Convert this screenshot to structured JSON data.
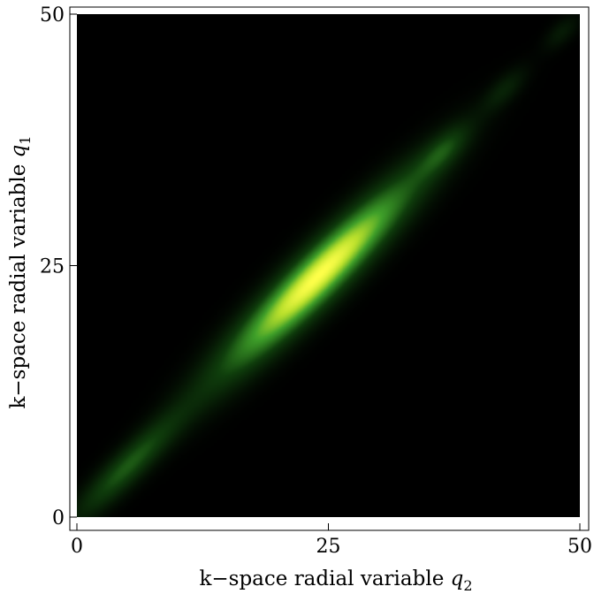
{
  "chart_data": {
    "type": "heatmap",
    "title": "",
    "xlabel": {
      "text": "k−space radial variable ",
      "symbol": "q",
      "subscript": "2"
    },
    "ylabel": {
      "text": "k−space radial variable ",
      "symbol": "q",
      "subscript": "1"
    },
    "xlim": [
      0,
      50
    ],
    "ylim": [
      0,
      50
    ],
    "xticks": [
      0,
      25,
      50
    ],
    "yticks": [
      0,
      25,
      50
    ],
    "xtick_labels": [
      "0",
      "25",
      "50"
    ],
    "ytick_labels": [
      "0",
      "25",
      "50"
    ],
    "grid": false,
    "legend": "none",
    "colormap": {
      "stops": [
        {
          "value": 0.0,
          "color": "#000000"
        },
        {
          "value": 0.35,
          "color": "#0f3d0c"
        },
        {
          "value": 0.65,
          "color": "#3fa02a"
        },
        {
          "value": 0.85,
          "color": "#b9e02c"
        },
        {
          "value": 1.0,
          "color": "#ffff4a"
        }
      ]
    },
    "features": [
      {
        "center": [
          5,
          5
        ],
        "half_length_along_diagonal": 7.5,
        "half_width_across": 1.5,
        "peak": 0.42
      },
      {
        "center": [
          24,
          24
        ],
        "half_length_along_diagonal": 14.0,
        "half_width_across": 2.3,
        "peak": 1.0
      },
      {
        "center": [
          36.5,
          36.5
        ],
        "half_length_along_diagonal": 3.5,
        "half_width_across": 1.3,
        "peak": 0.28
      },
      {
        "center": [
          42.5,
          42.5
        ],
        "half_length_along_diagonal": 3.0,
        "half_width_across": 1.1,
        "peak": 0.18
      },
      {
        "center": [
          48.2,
          48.2
        ],
        "half_length_along_diagonal": 2.3,
        "half_width_across": 1.0,
        "peak": 0.15
      }
    ]
  }
}
